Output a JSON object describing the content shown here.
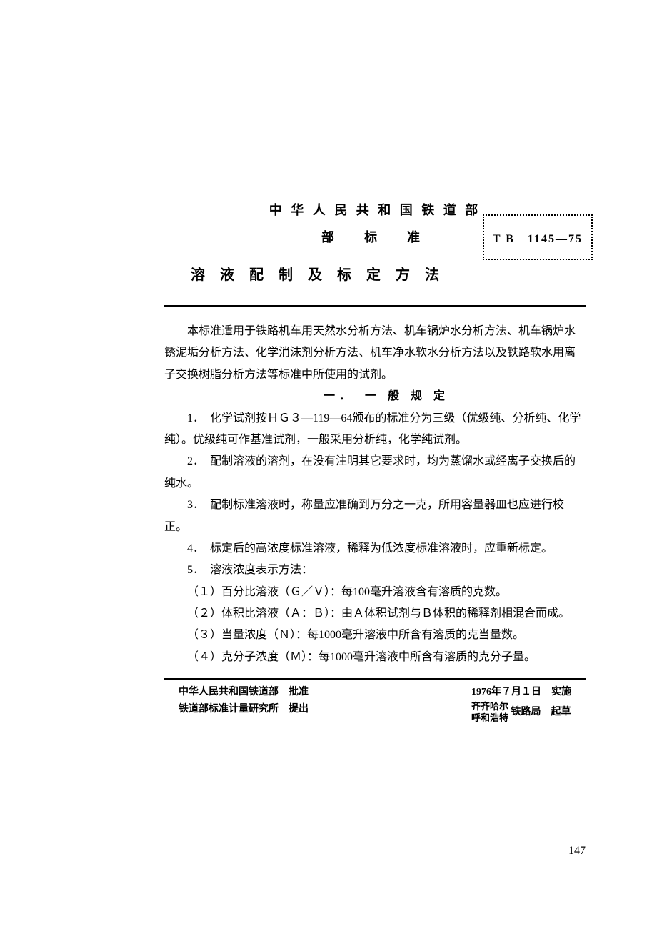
{
  "header": {
    "org": "中 华 人 民 共 和 国 铁 道 部",
    "sub": "部　标　准",
    "title": "溶 液 配 制 及 标 定 方 法",
    "standard_code": "T B　1145—75"
  },
  "intro": "本标准适用于铁路机车用天然水分析方法、机车锅炉水分析方法、机车锅炉水锈泥垢分析方法、化学消沫剂分析方法、机车净水软水分析方法以及铁路软水用离子交换树脂分析方法等标准中所使用的试剂。",
  "section1": {
    "heading": "一．　一 般 规 定",
    "p1": "1．　化学试剂按ＨＧ３—119—64颁布的标准分为三级（优级纯、分析纯、化学纯）。优级纯可作基准试剂，一般采用分析纯，化学纯试剂。",
    "p2": "2．　配制溶液的溶剂，在没有注明其它要求时，均为蒸馏水或经离子交换后的纯水。",
    "p3": "3．　配制标准溶液时，称量应准确到万分之一克，所用容量器皿也应进行校正。",
    "p4": "4．　标定后的高浓度标准溶液，稀释为低浓度标准溶液时，应重新标定。",
    "p5": "5．　溶液浓度表示方法：",
    "p5_1": "（１）百分比溶液（Ｇ／Ｖ）：每100毫升溶液含有溶质的克数。",
    "p5_2": "（２）体积比溶液（Ａ：Ｂ）：由Ａ体积试剂与Ｂ体积的稀释剂相混合而成。",
    "p5_3": "（３）当量浓度（Ｎ）：每1000毫升溶液中所含有溶质的克当量数。",
    "p5_4": "（４）克分子浓度（Ｍ）：每1000毫升溶液中所含有溶质的克分子量。"
  },
  "footer": {
    "approve": "中华人民共和国铁道部　批准",
    "propose": "铁道部标准计量研究所　提出",
    "effective": "1976年７月１日　实施",
    "drafter_1": "齐齐哈尔",
    "drafter_2": "呼和浩特",
    "drafter_suffix": "铁路局　起草"
  },
  "page_number": "147"
}
